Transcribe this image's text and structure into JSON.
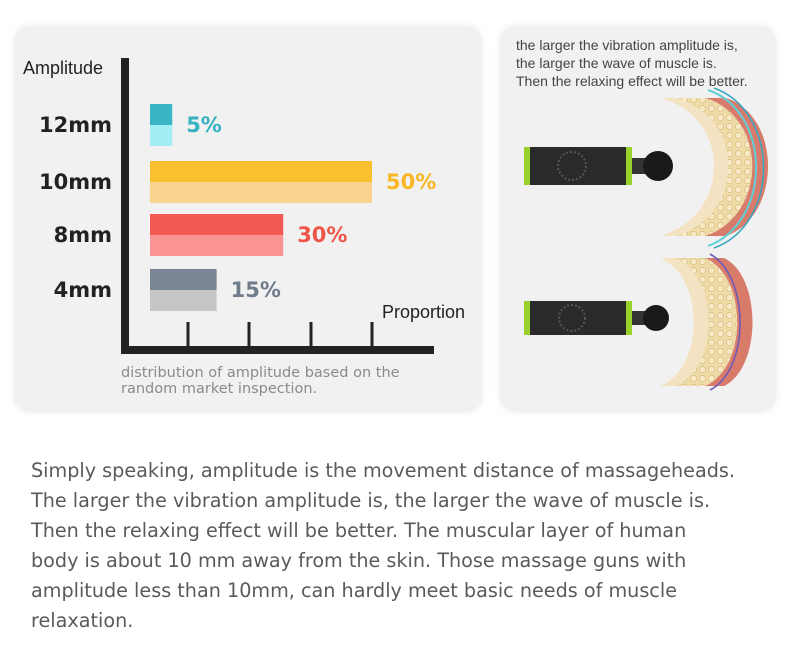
{
  "chart_data": {
    "type": "bar",
    "orientation": "horizontal",
    "ylabel": "Amplitude",
    "xlabel": "Proportion",
    "categories": [
      "12mm",
      "10mm",
      "8mm",
      "4mm"
    ],
    "values": [
      5,
      50,
      30,
      15
    ],
    "value_labels": [
      "5%",
      "50%",
      "30%",
      "15%"
    ],
    "colors": [
      {
        "top": "#39b5c5",
        "bottom": "#a3eef2",
        "label": "#35b1c2"
      },
      {
        "top": "#fbc02d",
        "bottom": "#fad38e",
        "label": "#f9b726"
      },
      {
        "top": "#f25a52",
        "bottom": "#fa9494",
        "label": "#ef5448"
      },
      {
        "top": "#7b8797",
        "bottom": "#c6c6c6",
        "label": "#707c8b"
      }
    ],
    "xlim": [
      0,
      50
    ],
    "caption": [
      "distribution of amplitude based on the",
      "random market inspection."
    ]
  },
  "illustration": {
    "note_lines": [
      "the larger the vibration amplitude is,",
      "the larger the wave of muscle is.",
      "Then the relaxing effect will be better."
    ],
    "panels": [
      "large-amplitude",
      "small-amplitude"
    ]
  },
  "body_text": [
    "Simply speaking, amplitude is the movement distance of massageheads.",
    "The larger the vibration amplitude is, the larger the wave of muscle is.",
    "Then the relaxing effect will be better. The muscular layer of human",
    "body is about 10 mm away from the skin. Those massage guns with",
    "amplitude less than 10mm, can hardly meet basic needs of muscle",
    "relaxation."
  ]
}
